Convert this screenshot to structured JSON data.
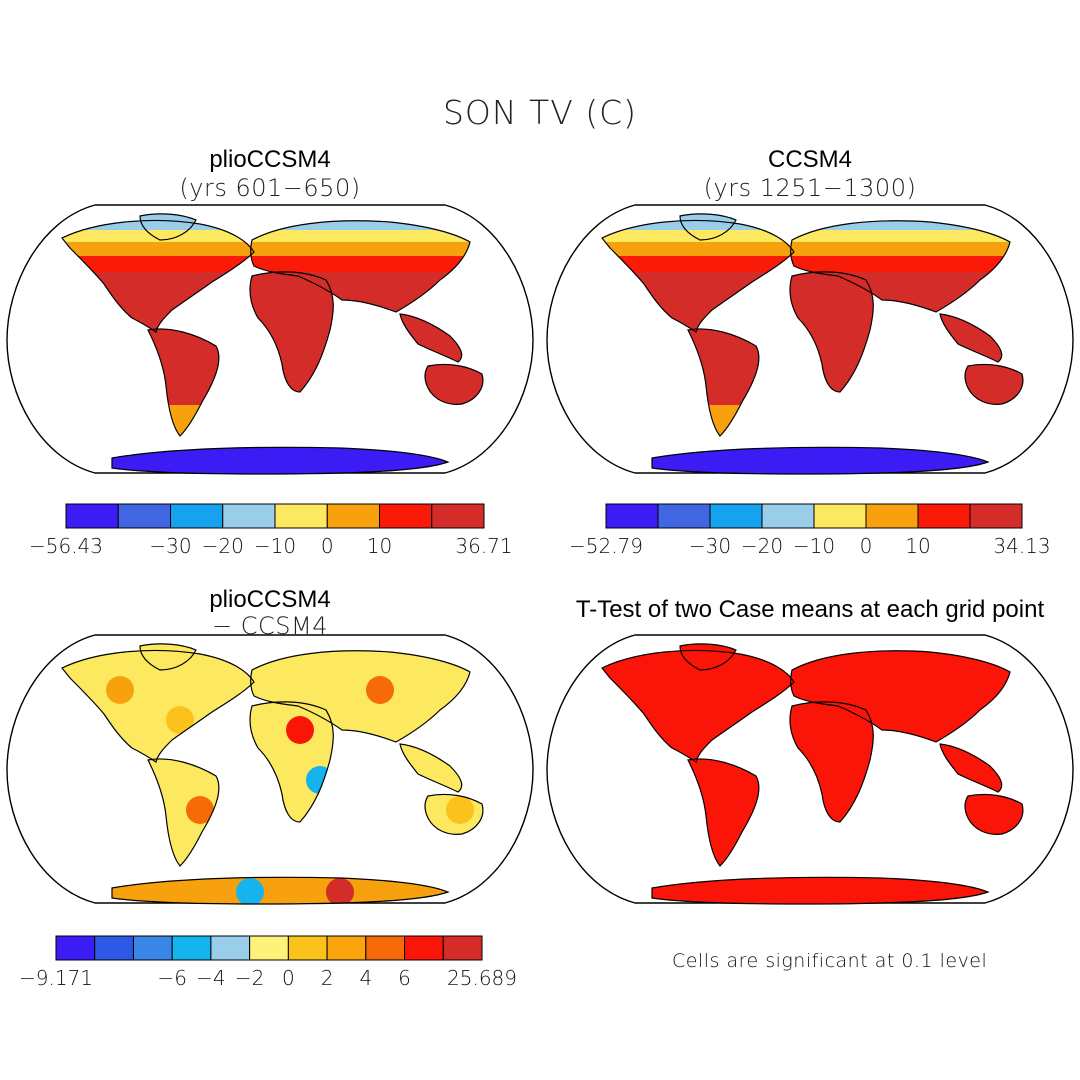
{
  "figure_title": "SON TV (C)",
  "panels": [
    {
      "title": "plioCCSM4",
      "subtitle": "(yrs 601−650)",
      "colorbar": {
        "colors": [
          "#3b1cf5",
          "#4066e4",
          "#16a2ee",
          "#9acdea",
          "#fde95f",
          "#f7a10f",
          "#fa1a08",
          "#d42d29"
        ],
        "labels": [
          "−56.43",
          "−30",
          "−20",
          "−10",
          "0",
          "10",
          "36.71"
        ]
      }
    },
    {
      "title": "CCSM4",
      "subtitle": "(yrs 1251−1300)",
      "colorbar": {
        "colors": [
          "#3b1cf5",
          "#4066e4",
          "#16a2ee",
          "#9acdea",
          "#fde95f",
          "#f7a10f",
          "#fa1a08",
          "#d42d29"
        ],
        "labels": [
          "−52.79",
          "−30",
          "−20",
          "−10",
          "0",
          "10",
          "34.13"
        ]
      }
    },
    {
      "title": "plioCCSM4",
      "subtitle": "− CCSM4",
      "colorbar": {
        "colors": [
          "#3b1cf5",
          "#2f58e6",
          "#3a86e6",
          "#16b4ee",
          "#9acdea",
          "#fff27a",
          "#fbc21c",
          "#fba50e",
          "#f76a08",
          "#fa1508",
          "#d42d29"
        ],
        "labels": [
          "−9.171",
          "−6",
          "−4",
          "−2",
          "0",
          "2",
          "4",
          "6",
          "25.689"
        ]
      }
    },
    {
      "title": "T-Test of two Case means at each grid point",
      "note": "Cells are significant at 0.1 level"
    }
  ]
}
